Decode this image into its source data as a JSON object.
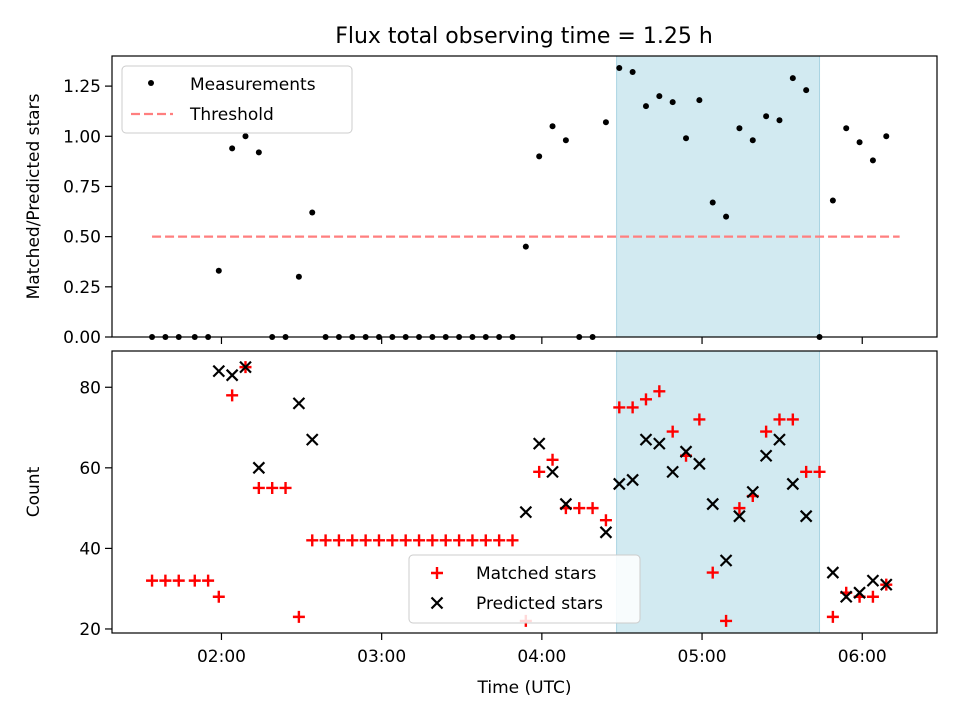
{
  "title": "Flux total observing time = 1.25 h",
  "colors": {
    "measurement": "#000000",
    "threshold": "#ff7f7f",
    "matched": "#ff0000",
    "predicted": "#000000",
    "highlight": "#add8e6"
  },
  "chart_data": [
    {
      "type": "scatter",
      "panel": "top",
      "ylabel": "Matched/Predicted stars",
      "xlim": [
        "01:19",
        "06:28"
      ],
      "ylim": [
        0,
        1.4
      ],
      "yticks": [
        "0.00",
        "0.25",
        "0.50",
        "0.75",
        "1.00",
        "1.25"
      ],
      "highlight_span": [
        "04:28",
        "05:44"
      ],
      "legend": {
        "position": "top-left",
        "entries": [
          "Measurements",
          "Threshold"
        ]
      },
      "threshold": {
        "name": "Threshold",
        "value": 0.5,
        "x": [
          "01:34",
          "06:14"
        ]
      },
      "series": [
        {
          "name": "Measurements",
          "points": [
            [
              "01:34",
              0
            ],
            [
              "01:39",
              0
            ],
            [
              "01:44",
              0
            ],
            [
              "01:50",
              0
            ],
            [
              "01:55",
              0
            ],
            [
              "01:59",
              0.33
            ],
            [
              "02:04",
              0.94
            ],
            [
              "02:09",
              1.0
            ],
            [
              "02:14",
              0.92
            ],
            [
              "02:19",
              0
            ],
            [
              "02:24",
              0
            ],
            [
              "02:29",
              0.3
            ],
            [
              "02:34",
              0.62
            ],
            [
              "02:39",
              0
            ],
            [
              "02:44",
              0
            ],
            [
              "02:49",
              0
            ],
            [
              "02:54",
              0
            ],
            [
              "02:59",
              0
            ],
            [
              "03:04",
              0
            ],
            [
              "03:09",
              0
            ],
            [
              "03:14",
              0
            ],
            [
              "03:19",
              0
            ],
            [
              "03:24",
              0
            ],
            [
              "03:29",
              0
            ],
            [
              "03:34",
              0
            ],
            [
              "03:39",
              0
            ],
            [
              "03:44",
              0
            ],
            [
              "03:49",
              0
            ],
            [
              "03:54",
              0.45
            ],
            [
              "03:59",
              0.9
            ],
            [
              "04:04",
              1.05
            ],
            [
              "04:09",
              0.98
            ],
            [
              "04:14",
              0
            ],
            [
              "04:19",
              0
            ],
            [
              "04:24",
              1.07
            ],
            [
              "04:29",
              1.34
            ],
            [
              "04:34",
              1.32
            ],
            [
              "04:39",
              1.15
            ],
            [
              "04:44",
              1.2
            ],
            [
              "04:49",
              1.17
            ],
            [
              "04:54",
              0.99
            ],
            [
              "04:59",
              1.18
            ],
            [
              "05:04",
              0.67
            ],
            [
              "05:09",
              0.6
            ],
            [
              "05:14",
              1.04
            ],
            [
              "05:19",
              0.98
            ],
            [
              "05:24",
              1.1
            ],
            [
              "05:29",
              1.08
            ],
            [
              "05:34",
              1.29
            ],
            [
              "05:39",
              1.23
            ],
            [
              "05:44",
              0
            ],
            [
              "05:49",
              0.68
            ],
            [
              "05:54",
              1.04
            ],
            [
              "05:59",
              0.97
            ],
            [
              "06:04",
              0.88
            ],
            [
              "06:09",
              1.0
            ]
          ]
        }
      ]
    },
    {
      "type": "scatter",
      "panel": "bottom",
      "xlabel": "Time (UTC)",
      "ylabel": "Count",
      "xlim": [
        "01:19",
        "06:28"
      ],
      "ylim": [
        19,
        89
      ],
      "xticks": [
        "02:00",
        "03:00",
        "04:00",
        "05:00",
        "06:00"
      ],
      "yticks": [
        "20",
        "40",
        "60",
        "80"
      ],
      "highlight_span": [
        "04:28",
        "05:44"
      ],
      "legend": {
        "position": "lower-center",
        "entries": [
          "Matched stars",
          "Predicted stars"
        ]
      },
      "series": [
        {
          "name": "Matched stars",
          "marker": "+",
          "points": [
            [
              "01:34",
              32
            ],
            [
              "01:39",
              32
            ],
            [
              "01:44",
              32
            ],
            [
              "01:50",
              32
            ],
            [
              "01:55",
              32
            ],
            [
              "01:59",
              28
            ],
            [
              "02:04",
              78
            ],
            [
              "02:09",
              85
            ],
            [
              "02:14",
              55
            ],
            [
              "02:19",
              55
            ],
            [
              "02:24",
              55
            ],
            [
              "02:29",
              23
            ],
            [
              "02:34",
              42
            ],
            [
              "02:39",
              42
            ],
            [
              "02:44",
              42
            ],
            [
              "02:49",
              42
            ],
            [
              "02:54",
              42
            ],
            [
              "02:59",
              42
            ],
            [
              "03:04",
              42
            ],
            [
              "03:09",
              42
            ],
            [
              "03:14",
              42
            ],
            [
              "03:19",
              42
            ],
            [
              "03:24",
              42
            ],
            [
              "03:29",
              42
            ],
            [
              "03:34",
              42
            ],
            [
              "03:39",
              42
            ],
            [
              "03:44",
              42
            ],
            [
              "03:49",
              42
            ],
            [
              "03:54",
              22
            ],
            [
              "03:59",
              59
            ],
            [
              "04:04",
              62
            ],
            [
              "04:09",
              50
            ],
            [
              "04:14",
              50
            ],
            [
              "04:19",
              50
            ],
            [
              "04:24",
              47
            ],
            [
              "04:29",
              75
            ],
            [
              "04:34",
              75
            ],
            [
              "04:39",
              77
            ],
            [
              "04:44",
              79
            ],
            [
              "04:49",
              69
            ],
            [
              "04:54",
              63
            ],
            [
              "04:59",
              72
            ],
            [
              "05:04",
              34
            ],
            [
              "05:09",
              22
            ],
            [
              "05:14",
              50
            ],
            [
              "05:19",
              53
            ],
            [
              "05:24",
              69
            ],
            [
              "05:29",
              72
            ],
            [
              "05:34",
              72
            ],
            [
              "05:39",
              59
            ],
            [
              "05:44",
              59
            ],
            [
              "05:49",
              23
            ],
            [
              "05:54",
              29
            ],
            [
              "05:59",
              28
            ],
            [
              "06:04",
              28
            ],
            [
              "06:09",
              31
            ]
          ]
        },
        {
          "name": "Predicted stars",
          "marker": "x",
          "points": [
            [
              "01:59",
              84
            ],
            [
              "02:04",
              83
            ],
            [
              "02:09",
              85
            ],
            [
              "02:14",
              60
            ],
            [
              "02:29",
              76
            ],
            [
              "02:34",
              67
            ],
            [
              "03:54",
              49
            ],
            [
              "03:59",
              66
            ],
            [
              "04:04",
              59
            ],
            [
              "04:09",
              51
            ],
            [
              "04:24",
              44
            ],
            [
              "04:29",
              56
            ],
            [
              "04:34",
              57
            ],
            [
              "04:39",
              67
            ],
            [
              "04:44",
              66
            ],
            [
              "04:49",
              59
            ],
            [
              "04:54",
              64
            ],
            [
              "04:59",
              61
            ],
            [
              "05:04",
              51
            ],
            [
              "05:09",
              37
            ],
            [
              "05:14",
              48
            ],
            [
              "05:19",
              54
            ],
            [
              "05:24",
              63
            ],
            [
              "05:29",
              67
            ],
            [
              "05:34",
              56
            ],
            [
              "05:39",
              48
            ],
            [
              "05:49",
              34
            ],
            [
              "05:54",
              28
            ],
            [
              "05:59",
              29
            ],
            [
              "06:04",
              32
            ],
            [
              "06:09",
              31
            ]
          ]
        }
      ]
    }
  ]
}
